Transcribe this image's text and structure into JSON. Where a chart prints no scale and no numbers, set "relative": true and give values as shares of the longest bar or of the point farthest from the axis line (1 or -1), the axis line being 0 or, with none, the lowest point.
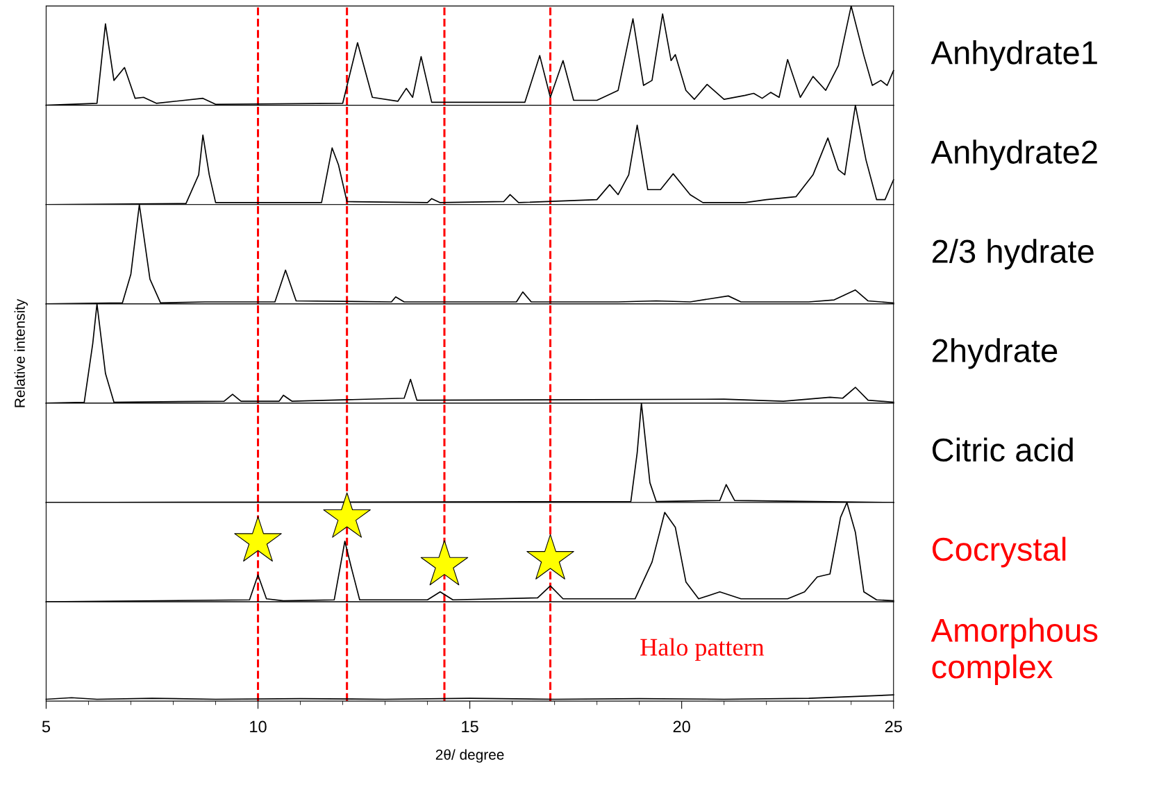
{
  "chart_data": [
    {
      "type": "line",
      "relative": true,
      "xlim": [
        5,
        25
      ],
      "tick_labels": false,
      "ref_lines": [
        {
          "axis": "x",
          "value": 10,
          "color": "#ff0000",
          "line_style": "dashed"
        },
        {
          "axis": "x",
          "value": 12.1,
          "color": "#ff0000",
          "line_style": "dashed"
        },
        {
          "axis": "x",
          "value": 14.4,
          "color": "#ff0000",
          "line_style": "dashed"
        },
        {
          "axis": "x",
          "value": 16.9,
          "color": "#ff0000",
          "line_style": "dashed"
        }
      ],
      "series": [
        {
          "name": "Anhydrate1",
          "color": "#000000",
          "x": [
            5,
            6.2,
            6.4,
            6.6,
            6.85,
            7.1,
            7.3,
            7.6,
            8.7,
            9.0,
            12.0,
            12.35,
            12.7,
            13.3,
            13.5,
            13.65,
            13.85,
            14.1,
            16.3,
            16.65,
            16.9,
            17.2,
            17.45,
            18.0,
            18.5,
            18.85,
            19.1,
            19.3,
            19.55,
            19.75,
            19.85,
            20.1,
            20.3,
            20.6,
            21.0,
            21.5,
            21.7,
            21.9,
            22.1,
            22.3,
            22.5,
            22.8,
            23.1,
            23.4,
            23.7,
            24.0,
            24.3,
            24.5,
            24.7,
            24.85,
            25.0
          ],
          "values": [
            0,
            0.02,
            0.82,
            0.25,
            0.38,
            0.07,
            0.08,
            0.02,
            0.07,
            0.01,
            0.02,
            0.63,
            0.08,
            0.04,
            0.17,
            0.08,
            0.49,
            0.03,
            0.03,
            0.5,
            0.08,
            0.45,
            0.05,
            0.05,
            0.15,
            0.87,
            0.2,
            0.25,
            0.92,
            0.45,
            0.51,
            0.15,
            0.06,
            0.21,
            0.06,
            0.1,
            0.12,
            0.07,
            0.13,
            0.08,
            0.46,
            0.08,
            0.29,
            0.15,
            0.4,
            1.0,
            0.5,
            0.2,
            0.25,
            0.2,
            0.35
          ]
        }
      ]
    },
    {
      "type": "line",
      "relative": true,
      "xlim": [
        5,
        25
      ],
      "tick_labels": false,
      "ref_lines": [
        {
          "axis": "x",
          "value": 10,
          "color": "#ff0000",
          "line_style": "dashed"
        },
        {
          "axis": "x",
          "value": 12.1,
          "color": "#ff0000",
          "line_style": "dashed"
        },
        {
          "axis": "x",
          "value": 14.4,
          "color": "#ff0000",
          "line_style": "dashed"
        },
        {
          "axis": "x",
          "value": 16.9,
          "color": "#ff0000",
          "line_style": "dashed"
        }
      ],
      "series": [
        {
          "name": "Anhydrate2",
          "color": "#000000",
          "x": [
            5,
            8.3,
            8.6,
            8.7,
            8.85,
            9.0,
            11.5,
            11.75,
            11.9,
            12.1,
            14.0,
            14.1,
            14.3,
            15.8,
            15.95,
            16.15,
            18.0,
            18.3,
            18.5,
            18.75,
            18.95,
            19.2,
            19.5,
            19.8,
            20.2,
            20.5,
            21.5,
            22.0,
            22.7,
            23.1,
            23.45,
            23.7,
            23.85,
            24.1,
            24.35,
            24.6,
            24.8,
            25.0
          ],
          "values": [
            0,
            0.01,
            0.3,
            0.7,
            0.3,
            0.02,
            0.02,
            0.57,
            0.4,
            0.03,
            0.02,
            0.06,
            0.02,
            0.03,
            0.1,
            0.02,
            0.05,
            0.2,
            0.1,
            0.3,
            0.8,
            0.15,
            0.15,
            0.31,
            0.1,
            0.02,
            0.02,
            0.05,
            0.08,
            0.3,
            0.67,
            0.35,
            0.3,
            1.0,
            0.45,
            0.05,
            0.05,
            0.25
          ]
        }
      ]
    },
    {
      "type": "line",
      "relative": true,
      "xlim": [
        5,
        25
      ],
      "tick_labels": false,
      "ref_lines": [
        {
          "axis": "x",
          "value": 10,
          "color": "#ff0000",
          "line_style": "dashed"
        },
        {
          "axis": "x",
          "value": 12.1,
          "color": "#ff0000",
          "line_style": "dashed"
        },
        {
          "axis": "x",
          "value": 14.4,
          "color": "#ff0000",
          "line_style": "dashed"
        },
        {
          "axis": "x",
          "value": 16.9,
          "color": "#ff0000",
          "line_style": "dashed"
        }
      ],
      "series": [
        {
          "name": "2/3 hydrate",
          "color": "#000000",
          "x": [
            5,
            6.8,
            7.0,
            7.2,
            7.45,
            7.7,
            8.75,
            10.4,
            10.65,
            10.9,
            13.15,
            13.25,
            13.45,
            16.1,
            16.25,
            16.45,
            18.5,
            19.4,
            20.2,
            21.1,
            21.4,
            23.0,
            23.6,
            24.1,
            24.4,
            25
          ],
          "values": [
            0,
            0.01,
            0.3,
            1.0,
            0.25,
            0.01,
            0.02,
            0.02,
            0.34,
            0.03,
            0.02,
            0.07,
            0.02,
            0.02,
            0.12,
            0.02,
            0.02,
            0.03,
            0.02,
            0.08,
            0.02,
            0.02,
            0.04,
            0.14,
            0.03,
            0.01
          ]
        }
      ]
    },
    {
      "type": "line",
      "relative": true,
      "xlim": [
        5,
        25
      ],
      "tick_labels": false,
      "ylabel": "Relative intensity",
      "ref_lines": [
        {
          "axis": "x",
          "value": 10,
          "color": "#ff0000",
          "line_style": "dashed"
        },
        {
          "axis": "x",
          "value": 12.1,
          "color": "#ff0000",
          "line_style": "dashed"
        },
        {
          "axis": "x",
          "value": 14.4,
          "color": "#ff0000",
          "line_style": "dashed"
        },
        {
          "axis": "x",
          "value": 16.9,
          "color": "#ff0000",
          "line_style": "dashed"
        }
      ],
      "series": [
        {
          "name": "2hydrate",
          "color": "#000000",
          "x": [
            5,
            5.9,
            6.1,
            6.2,
            6.4,
            6.6,
            9.2,
            9.4,
            9.6,
            10.5,
            10.6,
            10.8,
            13.45,
            13.6,
            13.75,
            21.0,
            22.4,
            23.5,
            23.8,
            24.1,
            24.4,
            25
          ],
          "values": [
            0,
            0.01,
            0.6,
            1.0,
            0.3,
            0.01,
            0.02,
            0.09,
            0.02,
            0.02,
            0.08,
            0.02,
            0.05,
            0.24,
            0.03,
            0.04,
            0.02,
            0.06,
            0.05,
            0.16,
            0.03,
            0.01
          ]
        }
      ]
    },
    {
      "type": "line",
      "relative": true,
      "xlim": [
        5,
        25
      ],
      "tick_labels": false,
      "ref_lines": [
        {
          "axis": "x",
          "value": 10,
          "color": "#ff0000",
          "line_style": "dashed"
        },
        {
          "axis": "x",
          "value": 12.1,
          "color": "#ff0000",
          "line_style": "dashed"
        },
        {
          "axis": "x",
          "value": 14.4,
          "color": "#ff0000",
          "line_style": "dashed"
        },
        {
          "axis": "x",
          "value": 16.9,
          "color": "#ff0000",
          "line_style": "dashed"
        }
      ],
      "series": [
        {
          "name": "Citric acid",
          "color": "#000000",
          "x": [
            5,
            18.8,
            18.95,
            19.05,
            19.25,
            19.4,
            20.9,
            21.05,
            21.25,
            25
          ],
          "values": [
            0,
            0.01,
            0.5,
            1.0,
            0.2,
            0.01,
            0.02,
            0.18,
            0.02,
            0
          ]
        }
      ]
    },
    {
      "type": "line",
      "relative": true,
      "xlim": [
        5,
        25
      ],
      "tick_labels": false,
      "ref_lines": [
        {
          "axis": "x",
          "value": 10,
          "color": "#ff0000",
          "line_style": "dashed"
        },
        {
          "axis": "x",
          "value": 12.1,
          "color": "#ff0000",
          "line_style": "dashed"
        },
        {
          "axis": "x",
          "value": 14.4,
          "color": "#ff0000",
          "line_style": "dashed"
        },
        {
          "axis": "x",
          "value": 16.9,
          "color": "#ff0000",
          "line_style": "dashed"
        }
      ],
      "series": [
        {
          "name": "Cocrystal",
          "color": "#000000",
          "x": [
            5,
            9.8,
            10.0,
            10.2,
            10.6,
            11.8,
            12.05,
            12.2,
            12.4,
            14.0,
            14.3,
            14.6,
            16.6,
            16.9,
            17.2,
            18.9,
            19.3,
            19.6,
            19.85,
            20.1,
            20.4,
            20.9,
            21.4,
            22.5,
            22.9,
            23.2,
            23.5,
            23.75,
            23.9,
            24.1,
            24.3,
            24.6,
            25
          ],
          "values": [
            0,
            0.02,
            0.27,
            0.03,
            0.01,
            0.02,
            0.61,
            0.35,
            0.02,
            0.02,
            0.1,
            0.02,
            0.04,
            0.16,
            0.03,
            0.03,
            0.4,
            0.9,
            0.75,
            0.2,
            0.03,
            0.1,
            0.03,
            0.03,
            0.1,
            0.25,
            0.28,
            0.85,
            1.0,
            0.7,
            0.1,
            0.02,
            0.01
          ]
        },
        {
          "type": "scatter",
          "marker": "star",
          "color": "#ffff00",
          "x": [
            10,
            12.1,
            14.4,
            16.9
          ],
          "values": [
            0.61,
            0.85,
            0.37,
            0.43
          ]
        }
      ]
    },
    {
      "type": "line",
      "relative": true,
      "xlim": [
        5,
        25
      ],
      "xticks": [
        5,
        10,
        15,
        20,
        25
      ],
      "tick_labels": "x",
      "xlabel": "2θ/ degree",
      "annotations": [
        "Halo pattern"
      ],
      "ref_lines": [
        {
          "axis": "x",
          "value": 10,
          "color": "#ff0000",
          "line_style": "dashed"
        },
        {
          "axis": "x",
          "value": 12.1,
          "color": "#ff0000",
          "line_style": "dashed"
        },
        {
          "axis": "x",
          "value": 14.4,
          "color": "#ff0000",
          "line_style": "dashed"
        },
        {
          "axis": "x",
          "value": 16.9,
          "color": "#ff0000",
          "line_style": "dashed"
        }
      ],
      "series": [
        {
          "name": "Amorphous\ncomplex",
          "color": "#000000",
          "x": [
            5,
            5.6,
            6.2,
            7.5,
            9,
            11,
            13,
            15,
            17,
            19,
            21,
            23,
            25
          ],
          "values": [
            0.3,
            0.55,
            0.3,
            0.45,
            0.3,
            0.4,
            0.3,
            0.45,
            0.3,
            0.4,
            0.3,
            0.45,
            1.0
          ]
        }
      ]
    }
  ]
}
